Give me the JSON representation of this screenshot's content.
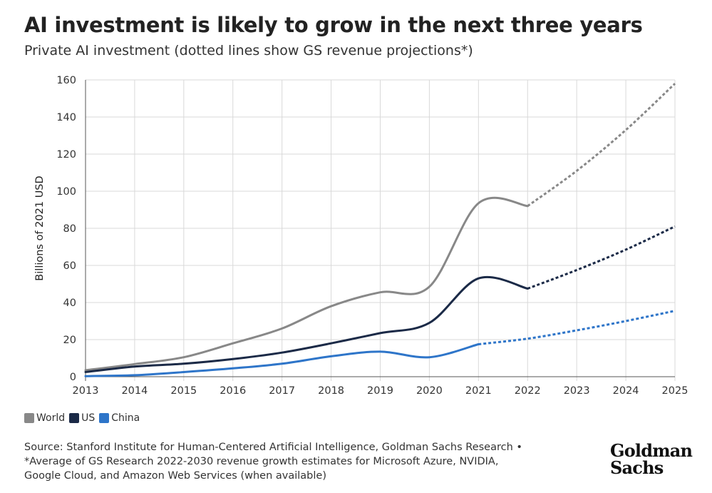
{
  "title": "AI investment is likely to grow in the next three years",
  "subtitle": "Private AI investment (dotted lines show GS revenue projections*)",
  "legend": [
    {
      "label": "World",
      "color": "#888888"
    },
    {
      "label": "US",
      "color": "#1b2a47"
    },
    {
      "label": "China",
      "color": "#2e75c9"
    }
  ],
  "source_lines": [
    "Source: Stanford Institute for Human-Centered Artificial Intelligence, Goldman Sachs Research •",
    "*Average of GS Research 2022-2030 revenue growth estimates for Microsoft Azure, NVIDIA,",
    "Google Cloud, and Amazon Web Services (when available)"
  ],
  "logo": {
    "line1": "Goldman",
    "line2": "Sachs"
  },
  "chart_data": {
    "type": "line",
    "title": "AI investment is likely to grow in the next three years",
    "subtitle": "Private AI investment (dotted lines show GS revenue projections*)",
    "xlabel": "",
    "ylabel": "Billions of 2021 USD",
    "x": [
      2013,
      2014,
      2015,
      2016,
      2017,
      2018,
      2019,
      2020,
      2021,
      2022,
      2023,
      2024,
      2025
    ],
    "ylim": [
      0,
      160
    ],
    "yticks": [
      0,
      20,
      40,
      60,
      80,
      100,
      120,
      140,
      160
    ],
    "grid": true,
    "legend_position": "bottom-left",
    "projection_start": 2022,
    "series": [
      {
        "name": "World",
        "color": "#888888",
        "values": [
          3.5,
          6.8,
          10.5,
          18,
          26,
          38,
          45.5,
          48.5,
          93.5,
          92,
          111,
          133,
          158
        ]
      },
      {
        "name": "US",
        "color": "#1b2a47",
        "values": [
          2.5,
          5.5,
          7,
          9.5,
          13,
          18,
          23.5,
          29,
          53,
          47.5,
          57.5,
          68.5,
          81
        ]
      },
      {
        "name": "China",
        "color": "#2e75c9",
        "values": [
          0.3,
          0.8,
          2.5,
          4.5,
          7,
          11,
          13.5,
          10.5,
          17.5,
          20.5,
          25,
          30,
          35.5
        ]
      }
    ]
  }
}
